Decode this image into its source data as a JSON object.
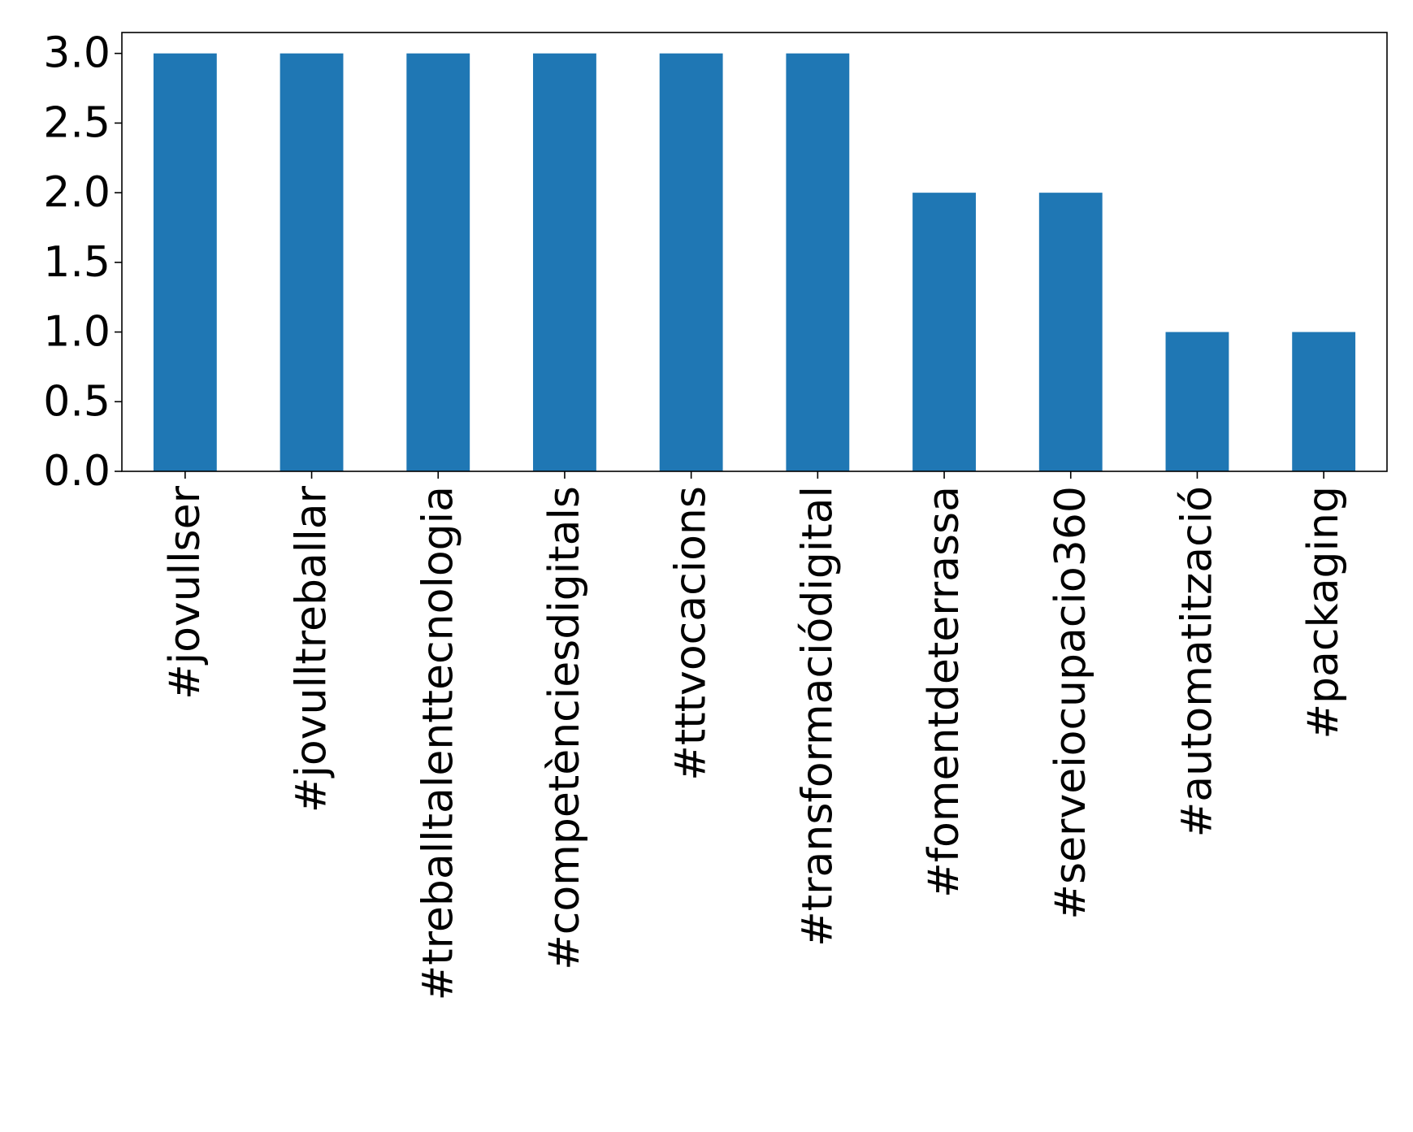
{
  "chart_data": {
    "type": "bar",
    "title": "",
    "xlabel": "",
    "ylabel": "",
    "categories": [
      "#jovullser",
      "#jovulltreballar",
      "#treballtalenttecnologia",
      "#competènciesdigitals",
      "#tttvocacions",
      "#transformaciódigital",
      "#fomentdeterrassa",
      "#serveiocupacio360",
      "#automatització",
      "#packaging"
    ],
    "values": [
      3,
      3,
      3,
      3,
      3,
      3,
      2,
      2,
      1,
      1
    ],
    "ylim": [
      0,
      3.15
    ],
    "yticks": [
      "0.0",
      "0.5",
      "1.0",
      "1.5",
      "2.0",
      "2.5",
      "3.0"
    ],
    "grid": false,
    "legend": "none",
    "bar_color": "#1f77b4"
  }
}
